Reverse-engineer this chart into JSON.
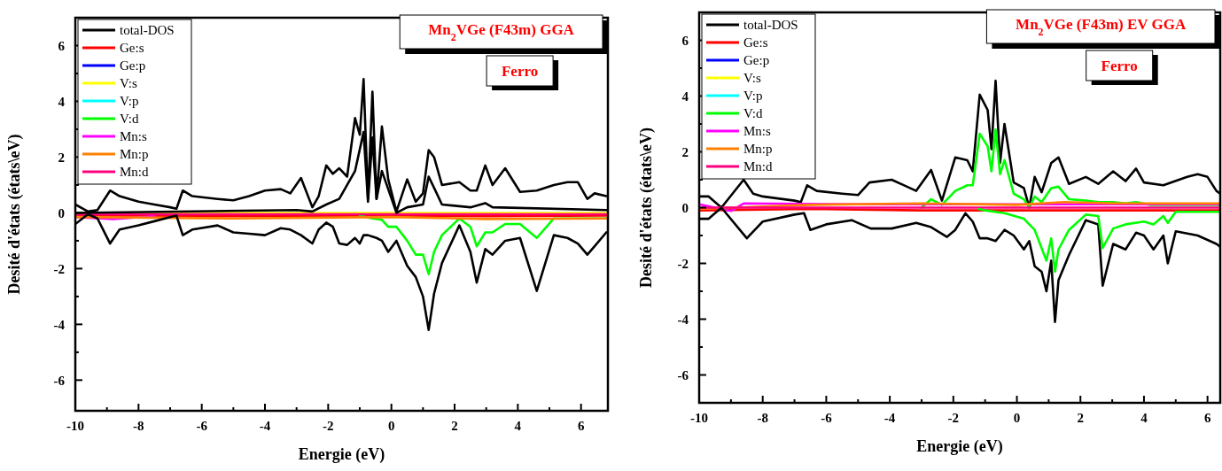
{
  "chart_data": [
    {
      "type": "line",
      "xlabel": "Energie (eV)",
      "ylabel": "Desité d'états (états\\eV)",
      "annotations": [
        "Mn$_{2}$VGe  (F43m) GGA",
        "Ferro"
      ],
      "legend": "top left",
      "line_style": "solid",
      "marker": "none",
      "grid": false,
      "xlim": [
        -10,
        6.85
      ],
      "ylim": [
        -7.1,
        7
      ],
      "xticks": [
        -10,
        {
          "value": -9,
          "label": null
        },
        -8,
        {
          "value": -7,
          "label": null
        },
        -6,
        {
          "value": -5,
          "label": null
        },
        -4,
        {
          "value": -3,
          "label": null
        },
        -2,
        {
          "value": -1,
          "label": null
        },
        0,
        {
          "value": 1,
          "label": null
        },
        2,
        {
          "value": 3,
          "label": null
        },
        4,
        {
          "value": 5,
          "label": null
        },
        6
      ],
      "yticks": [
        -6,
        {
          "value": -5,
          "label": null
        },
        -4,
        {
          "value": -3,
          "label": null
        },
        -2,
        {
          "value": -1,
          "label": null
        },
        0,
        {
          "value": 1,
          "label": null
        },
        2,
        {
          "value": 3,
          "label": null
        },
        4,
        {
          "value": 5,
          "label": null
        },
        6
      ],
      "series": [
        {
          "name": "total-DOS",
          "color": "#000000",
          "x": [
            -10,
            -9.6,
            -9.3,
            -8.9,
            -8.6,
            -8,
            -7.5,
            -7,
            -6.8,
            -6.6,
            -6.3,
            -5.5,
            -5,
            -4.5,
            -4,
            -3.5,
            -3.2,
            -2.86,
            -2.5,
            -2.3,
            -2.06,
            -1.85,
            -1.65,
            -1.4,
            -1.15,
            -1.0,
            -0.88,
            -0.74,
            -0.6,
            -0.47,
            -0.3,
            -0.1,
            0.16,
            0.5,
            0.77,
            1.0,
            1.18,
            1.35,
            1.6,
            2.15,
            2.5,
            2.7,
            2.97,
            3.2,
            3.6,
            4.07,
            4.6,
            5.14,
            5.57,
            5.9,
            6.2,
            6.43,
            6.8
          ],
          "values": [
            0.3,
            0.05,
            0.1,
            0.8,
            0.6,
            0.4,
            0.3,
            0.2,
            0.15,
            0.8,
            0.6,
            0.5,
            0.45,
            0.6,
            0.8,
            0.85,
            0.7,
            1.25,
            0.2,
            0.6,
            1.7,
            1.4,
            1.6,
            1.3,
            3.4,
            2.8,
            4.8,
            0.5,
            4.35,
            0.5,
            3.1,
            1.2,
            0.05,
            1.2,
            0.4,
            0.7,
            2.25,
            2.0,
            1.0,
            1.1,
            0.8,
            0.8,
            1.7,
            1.0,
            1.6,
            0.75,
            0.8,
            1.0,
            1.1,
            1.1,
            0.5,
            0.7,
            0.6
          ]
        },
        {
          "name": "Ge:s",
          "color": "#ff0000",
          "x": [
            -10,
            -5,
            0,
            3,
            6.8
          ],
          "values": [
            -0.1,
            -0.12,
            -0.1,
            -0.12,
            -0.1
          ]
        },
        {
          "name": "Ge:p",
          "color": "#0000ff"
        },
        {
          "name": "V:s",
          "color": "#ffff00",
          "x": [
            -10,
            -5,
            0,
            3,
            6.8
          ],
          "values": [
            0,
            0,
            0,
            0,
            0
          ]
        },
        {
          "name": "V:p",
          "color": "#00ffff"
        },
        {
          "name": "V:d",
          "color": "#00ff00",
          "x": [
            -1,
            -0.6,
            -0.3,
            -0.1,
            0.16,
            0.5,
            0.77,
            1.0,
            1.18,
            1.35,
            1.6,
            2.15,
            2.5,
            2.7,
            2.97,
            3.2,
            3.6,
            4.07,
            4.6,
            5.14,
            6.8
          ],
          "values": [
            -0.1,
            -0.2,
            -0.25,
            -0.5,
            -0.5,
            -1.0,
            -1.5,
            -1.5,
            -2.2,
            -1.4,
            -0.8,
            -0.2,
            -0.5,
            -1.2,
            -0.7,
            -0.7,
            -0.4,
            -0.4,
            -0.9,
            -0.2,
            -0.2
          ]
        },
        {
          "name": "Mn:s",
          "color": "#ff00ff",
          "x": [
            -10,
            -8.8,
            -7.5
          ],
          "values": [
            -0.15,
            -0.22,
            -0.12
          ]
        },
        {
          "name": "Mn:p",
          "color": "#ff8000",
          "x": [
            -10,
            -5,
            0,
            3,
            6.8
          ],
          "values": [
            -0.15,
            -0.2,
            -0.15,
            -0.22,
            -0.2
          ]
        },
        {
          "name": "Mn:d",
          "color": "#ff0080",
          "x": [
            -10,
            -5,
            0,
            3,
            6.8
          ],
          "values": [
            -0.05,
            -0.05,
            -0.05,
            -0.05,
            -0.05
          ]
        },
        {
          "color": "#000000",
          "x": [
            -10,
            -9.6,
            -9.3,
            -8.9,
            -8.6,
            -8,
            -7.5,
            -7,
            -6.8,
            -6.6,
            -6.3,
            -5.5,
            -5,
            -4.5,
            -4,
            -3.5,
            -3.2,
            -2.86,
            -2.5,
            -2.3,
            -2.06,
            -1.85,
            -1.65,
            -1.4,
            -1.15,
            -1.0,
            -0.88,
            -0.74,
            -0.6,
            -0.47,
            -0.3,
            -0.1,
            0.16,
            0.5,
            0.77,
            1.0,
            1.18,
            1.35,
            1.6,
            2.15,
            2.5,
            2.7,
            2.97,
            3.2,
            3.6,
            4.07,
            4.6,
            5.14,
            5.57,
            5.9,
            6.2,
            6.43,
            6.8
          ],
          "values": [
            -0.4,
            -0.05,
            -0.2,
            -1.1,
            -0.6,
            -0.45,
            -0.3,
            -0.15,
            -0.1,
            -0.8,
            -0.6,
            -0.45,
            -0.7,
            -0.75,
            -0.8,
            -0.55,
            -0.6,
            -0.8,
            -1.1,
            -0.6,
            -0.35,
            -0.5,
            -1.1,
            -1.15,
            -0.9,
            -1.1,
            -0.8,
            -0.8,
            -0.85,
            -0.9,
            -1.0,
            -1.4,
            -1.0,
            -1.9,
            -2.3,
            -3.0,
            -4.2,
            -2.9,
            -1.8,
            -0.45,
            -1.4,
            -2.5,
            -1.3,
            -1.5,
            -1.0,
            -0.9,
            -2.8,
            -0.8,
            -0.9,
            -1.1,
            -1.5,
            -1.2,
            -0.7
          ]
        },
        {
          "color": "#000000",
          "x": [
            -10,
            -3,
            -2.5,
            -2.06,
            -1.65,
            -1.15,
            -0.88,
            -0.74,
            -0.6,
            -0.47,
            -0.3,
            0.16,
            0.5,
            1.0,
            1.18,
            1.35,
            1.6,
            2.5,
            2.97,
            3.2,
            6.8
          ],
          "values": [
            0,
            0.1,
            0.05,
            0.3,
            0.5,
            1.5,
            2.9,
            0.4,
            2.7,
            0.5,
            1.5,
            0,
            0.2,
            0.3,
            1.3,
            0.9,
            0.3,
            0.2,
            0.35,
            0.2,
            0.1
          ]
        }
      ]
    },
    {
      "type": "line",
      "xlabel": "Energie (eV)",
      "ylabel": "Desité d'états (états\\eV)",
      "annotations": [
        "Mn$_{2}$VGe  (F43m) EV GGA",
        "Ferro"
      ],
      "legend": "top left",
      "line_style": "solid",
      "marker": "none",
      "grid": false,
      "xlim": [
        -10,
        6.4
      ],
      "ylim": [
        -7,
        7
      ],
      "xticks": [
        -10,
        {
          "value": -9,
          "label": null
        },
        -8,
        {
          "value": -7,
          "label": null
        },
        -6,
        {
          "value": -5,
          "label": null
        },
        -4,
        {
          "value": -3,
          "label": null
        },
        -2,
        {
          "value": -1,
          "label": null
        },
        0,
        {
          "value": 1,
          "label": null
        },
        2,
        {
          "value": 3,
          "label": null
        },
        4,
        {
          "value": 5,
          "label": null
        },
        6
      ],
      "yticks": [
        -6,
        {
          "value": -5,
          "label": null
        },
        -4,
        {
          "value": -3,
          "label": null
        },
        -2,
        {
          "value": -1,
          "label": null
        },
        0,
        {
          "value": 1,
          "label": null
        },
        2,
        {
          "value": 3,
          "label": null
        },
        4,
        {
          "value": 5,
          "label": null
        },
        6
      ],
      "series": [
        {
          "name": "total-DOS",
          "color": "#000000",
          "x": [
            -10,
            -9.7,
            -9.3,
            -8.6,
            -8.3,
            -8,
            -7,
            -6.8,
            -6.6,
            -6.3,
            -5.5,
            -5,
            -4.64,
            -3.94,
            -3.17,
            -2.7,
            -2.36,
            -1.94,
            -1.56,
            -1.39,
            -1.17,
            -0.92,
            -0.8,
            -0.67,
            -0.53,
            -0.39,
            -0.1,
            0.22,
            0.39,
            0.56,
            0.78,
            1.08,
            1.31,
            1.64,
            2.17,
            2.56,
            3.03,
            3.42,
            3.75,
            4.0,
            4.61,
            5.36,
            5.69,
            6.0,
            6.28,
            6.4
          ],
          "values": [
            0.4,
            0.4,
            0.0,
            1.0,
            0.5,
            0.4,
            0.25,
            0.2,
            0.8,
            0.6,
            0.5,
            0.45,
            0.9,
            1.0,
            0.6,
            1.35,
            0.25,
            1.8,
            1.7,
            1.3,
            4.05,
            3.5,
            2.1,
            4.55,
            1.6,
            3.0,
            0.9,
            0.7,
            0.0,
            1.1,
            0.55,
            1.6,
            1.8,
            0.85,
            1.1,
            0.85,
            1.3,
            0.95,
            1.4,
            0.9,
            0.8,
            1.1,
            1.2,
            1.1,
            0.6,
            0.5
          ]
        },
        {
          "name": "Ge:s",
          "color": "#ff0000",
          "x": [
            -10,
            -6.5,
            -3,
            0,
            3,
            6.4
          ],
          "values": [
            -0.1,
            -0.05,
            -0.1,
            -0.1,
            -0.1,
            -0.1
          ]
        },
        {
          "name": "Ge:p",
          "color": "#0000ff"
        },
        {
          "name": "V:s",
          "color": "#ffff00"
        },
        {
          "name": "V:p",
          "color": "#00ffff"
        },
        {
          "name": "V:d",
          "color": "#00ff00",
          "x": [
            -3,
            -2.7,
            -2.36,
            -1.94,
            -1.56,
            -1.39,
            -1.17,
            -0.92,
            -0.8,
            -0.67,
            -0.53,
            -0.39,
            -0.1,
            0.22,
            0.39,
            0.56,
            0.78,
            1.08,
            1.31,
            1.64,
            2.17,
            2.56,
            3.03,
            3.42,
            3.75,
            4.2,
            6.4
          ],
          "values": [
            0,
            0.3,
            0.1,
            0.6,
            0.8,
            0.8,
            2.65,
            2.2,
            1.3,
            2.8,
            1.2,
            1.7,
            0.5,
            0.3,
            0.0,
            0.4,
            0.2,
            0.7,
            0.75,
            0.3,
            0.25,
            0.2,
            0.2,
            0.15,
            0.2,
            0.1,
            0.1
          ]
        },
        {
          "name": "Mn:s",
          "color": "#ff00ff",
          "x": [
            -10,
            -9,
            -8.6,
            -5,
            0,
            6.4
          ],
          "values": [
            0.12,
            -0.12,
            0.15,
            0.12,
            0.12,
            0.12
          ]
        },
        {
          "name": "Mn:p",
          "color": "#ff8000",
          "x": [
            -10,
            -6.5,
            -3,
            0,
            1.5,
            3,
            6.4
          ],
          "values": [
            -0.05,
            0.1,
            0.15,
            0.1,
            0.2,
            0.15,
            0.15
          ]
        },
        {
          "name": "Mn:d",
          "color": "#ff0080",
          "x": [
            -10,
            -5,
            0,
            3,
            6.4
          ],
          "values": [
            0,
            0,
            0,
            0,
            0
          ]
        },
        {
          "color": "#000000",
          "x": [
            -10,
            -9.7,
            -9.3,
            -8.5,
            -8,
            -7,
            -6.7,
            -6.5,
            -6,
            -5.2,
            -4.6,
            -3.94,
            -3.17,
            -2.7,
            -2.2,
            -1.94,
            -1.62,
            -1.39,
            -1.17,
            -0.92,
            -0.67,
            -0.39,
            -0.1,
            0.22,
            0.39,
            0.56,
            0.78,
            0.93,
            1.08,
            1.2,
            1.31,
            1.64,
            2.17,
            2.56,
            2.7,
            3.03,
            3.42,
            3.75,
            4.0,
            4.3,
            4.61,
            4.75,
            5.0,
            5.69,
            6.28,
            6.4
          ],
          "values": [
            -0.4,
            -0.4,
            0.0,
            -1.1,
            -0.5,
            -0.25,
            -0.2,
            -0.8,
            -0.6,
            -0.45,
            -0.75,
            -0.75,
            -0.55,
            -0.7,
            -1.05,
            -0.8,
            -0.2,
            -0.5,
            -1.1,
            -1.1,
            -1.2,
            -0.8,
            -1.0,
            -1.5,
            -1.2,
            -2.1,
            -2.3,
            -3.0,
            -1.9,
            -4.1,
            -2.6,
            -1.7,
            -0.45,
            -0.6,
            -2.8,
            -1.3,
            -1.5,
            -0.9,
            -1.0,
            -1.5,
            -1.0,
            -2.0,
            -0.85,
            -1.0,
            -1.3,
            -1.4
          ]
        },
        {
          "color": "#00ff00",
          "x": [
            -1.2,
            -1,
            -0.39,
            0.22,
            0.56,
            0.93,
            1.08,
            1.2,
            1.31,
            1.64,
            2.17,
            2.56,
            2.7,
            3.03,
            3.42,
            4.0,
            4.3,
            4.61,
            4.75,
            5.0,
            6.4
          ],
          "values": [
            -0.05,
            -0.1,
            -0.2,
            -0.4,
            -0.8,
            -1.9,
            -1.1,
            -2.3,
            -1.5,
            -0.8,
            -0.25,
            -0.3,
            -1.45,
            -0.75,
            -0.6,
            -0.5,
            -0.6,
            -0.3,
            -0.55,
            -0.15,
            -0.15
          ]
        }
      ]
    }
  ]
}
